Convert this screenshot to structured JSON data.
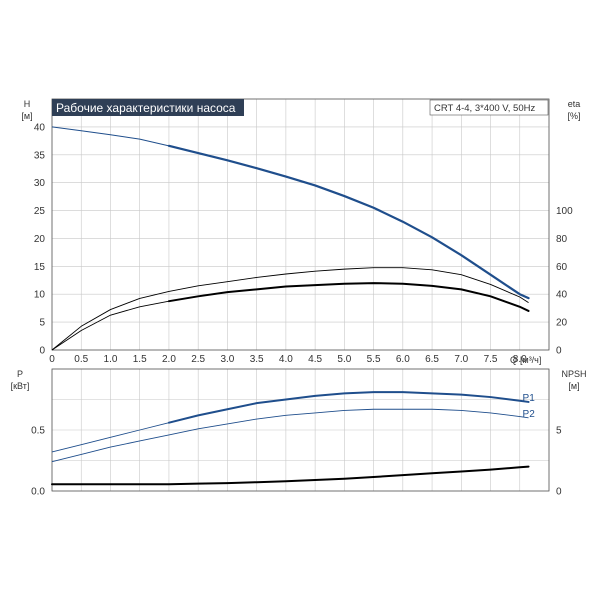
{
  "chart_data": [
    {
      "type": "line",
      "title": "Рабочие характеристики насоса",
      "subtitle": "CRT 4-4, 3*400 V, 50Hz",
      "xlabel": "Q [м³/ч]",
      "xlabel_q": "Q",
      "xlabel_unit": "[м³/ч]",
      "ylabel_name": "H",
      "ylabel_unit": "[м]",
      "y2label_name": "eta",
      "y2label_unit": "[%]",
      "xlim": [
        0,
        8.5
      ],
      "ylim": [
        0,
        45
      ],
      "y2lim": [
        0,
        180
      ],
      "x_ticks": [
        "0",
        "0.5",
        "1.0",
        "1.5",
        "2.0",
        "2.5",
        "3.0",
        "3.5",
        "4.0",
        "4.5",
        "5.0",
        "5.5",
        "6.0",
        "6.5",
        "7.0",
        "7.5",
        "8.0"
      ],
      "y_ticks": [
        "0",
        "5",
        "10",
        "15",
        "20",
        "25",
        "30",
        "35",
        "40"
      ],
      "y2_ticks": [
        "0",
        "20",
        "40",
        "60",
        "80",
        "100"
      ],
      "grid": true,
      "color_head": "#1f4e8c",
      "series": [
        {
          "key": "head",
          "axis": "left",
          "x": [
            0,
            0.5,
            1.0,
            1.5,
            2.0,
            2.5,
            3.0,
            3.5,
            4.0,
            4.5,
            5.0,
            5.5,
            6.0,
            6.5,
            7.0,
            7.5,
            8.0,
            8.15
          ],
          "values": [
            40.0,
            39.3,
            38.6,
            37.8,
            36.6,
            35.3,
            34.0,
            32.6,
            31.1,
            29.5,
            27.6,
            25.5,
            23.0,
            20.2,
            17.0,
            13.5,
            10.0,
            9.3
          ],
          "bold_from": 2.0
        },
        {
          "key": "eta_upper",
          "axis": "right",
          "x": [
            0,
            0.5,
            1.0,
            1.5,
            2.0,
            2.5,
            3.0,
            3.5,
            4.0,
            4.5,
            5.0,
            5.5,
            6.0,
            6.5,
            7.0,
            7.5,
            8.0,
            8.15
          ],
          "values": [
            0,
            17,
            29,
            37,
            42,
            46,
            49,
            52,
            54.5,
            56.5,
            58,
            59,
            59,
            57.5,
            54,
            47,
            38,
            34
          ]
        },
        {
          "key": "eta_lower",
          "axis": "right",
          "x": [
            0,
            0.5,
            1.0,
            1.5,
            2.0,
            2.5,
            3.0,
            3.5,
            4.0,
            4.5,
            5.0,
            5.5,
            6.0,
            6.5,
            7.0,
            7.5,
            8.0,
            8.15
          ],
          "values": [
            0,
            14,
            25,
            31,
            35,
            38.5,
            41.5,
            43.5,
            45.5,
            46.5,
            47.5,
            48,
            47.5,
            46,
            43.5,
            38.5,
            31,
            28
          ],
          "bold_from": 2.0
        }
      ]
    },
    {
      "type": "line",
      "ylabel_name": "P",
      "ylabel_unit": "[кВт]",
      "y2label_name": "NPSH",
      "y2label_unit": "[м]",
      "xlim": [
        0,
        8.5
      ],
      "ylim": [
        0,
        1.0
      ],
      "y2lim": [
        0,
        10
      ],
      "y_ticks": [
        "0.0",
        "0.5"
      ],
      "y2_ticks": [
        "0",
        "5"
      ],
      "grid": true,
      "color_power": "#1f4e8c",
      "series": [
        {
          "key": "p1",
          "name": "P1",
          "axis": "left",
          "x": [
            0,
            0.5,
            1.0,
            1.5,
            2.0,
            2.5,
            3.0,
            3.5,
            4.0,
            4.5,
            5.0,
            5.5,
            6.0,
            6.5,
            7.0,
            7.5,
            8.0,
            8.15
          ],
          "values": [
            0.32,
            0.38,
            0.44,
            0.5,
            0.56,
            0.62,
            0.67,
            0.72,
            0.75,
            0.78,
            0.8,
            0.81,
            0.81,
            0.8,
            0.79,
            0.77,
            0.74,
            0.73
          ],
          "bold_from": 2.0
        },
        {
          "key": "p2",
          "name": "P2",
          "axis": "left",
          "x": [
            0,
            0.5,
            1.0,
            1.5,
            2.0,
            2.5,
            3.0,
            3.5,
            4.0,
            4.5,
            5.0,
            5.5,
            6.0,
            6.5,
            7.0,
            7.5,
            8.0,
            8.15
          ],
          "values": [
            0.24,
            0.3,
            0.36,
            0.41,
            0.46,
            0.51,
            0.55,
            0.59,
            0.62,
            0.64,
            0.66,
            0.67,
            0.67,
            0.67,
            0.66,
            0.64,
            0.61,
            0.6
          ]
        },
        {
          "key": "npsh",
          "axis": "right",
          "x": [
            0,
            0.5,
            1.0,
            1.5,
            2.0,
            2.5,
            3.0,
            3.5,
            4.0,
            4.5,
            5.0,
            5.5,
            6.0,
            6.5,
            7.0,
            7.5,
            8.0,
            8.15
          ],
          "values": [
            0.55,
            0.55,
            0.55,
            0.55,
            0.55,
            0.6,
            0.65,
            0.72,
            0.8,
            0.9,
            1.0,
            1.15,
            1.3,
            1.45,
            1.6,
            1.75,
            1.95,
            2.0
          ],
          "bold_from": 0.0
        }
      ]
    }
  ]
}
